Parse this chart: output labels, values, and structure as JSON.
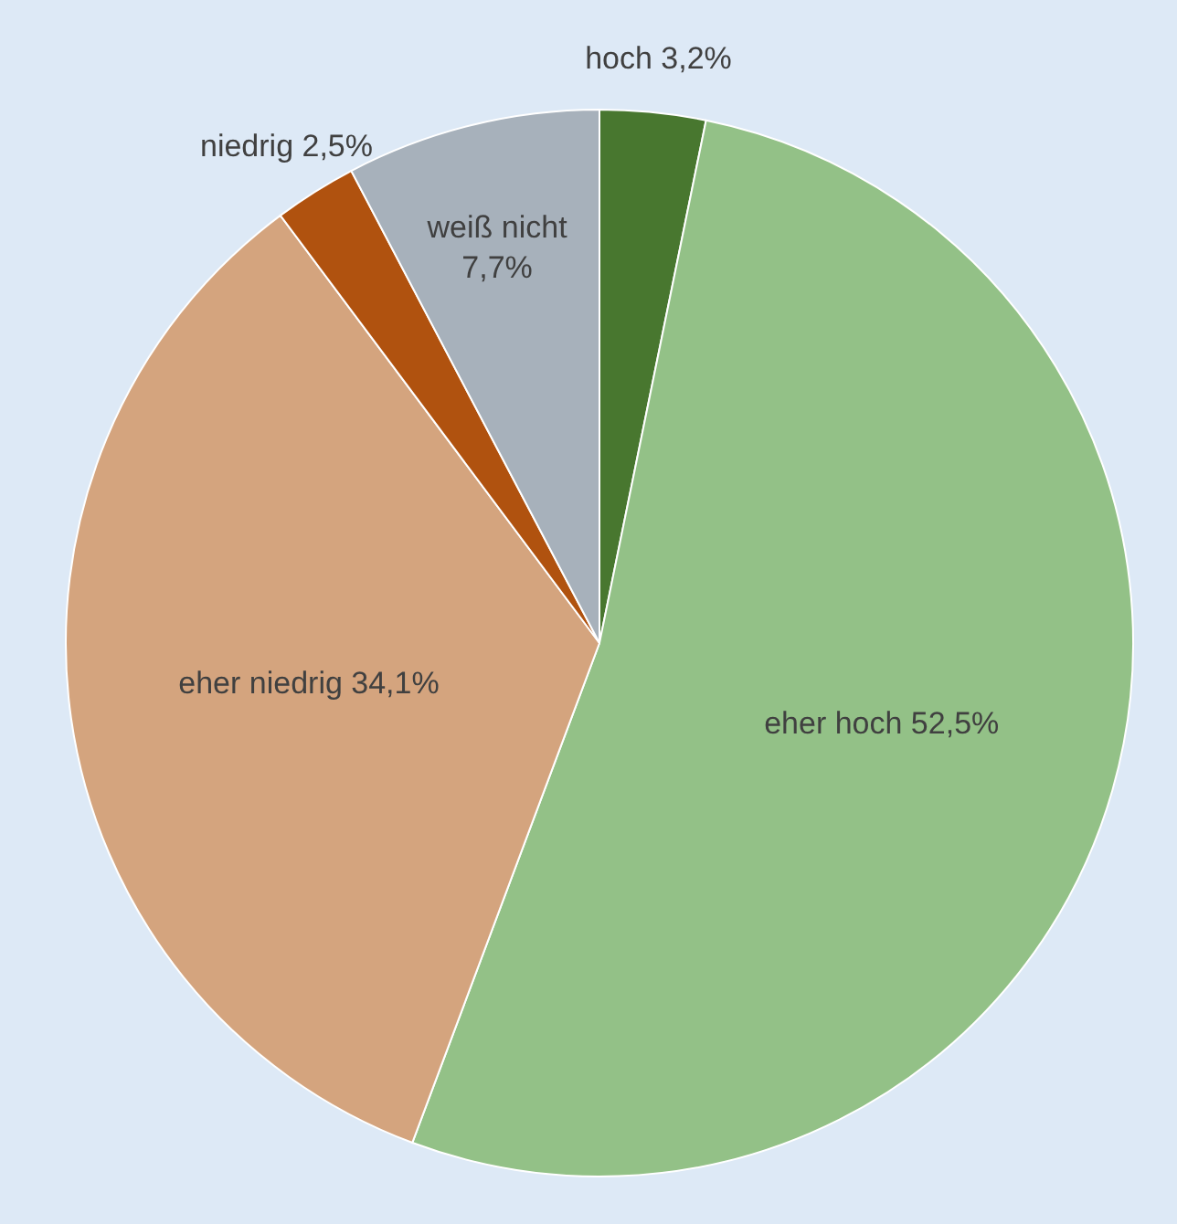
{
  "chart_data": {
    "type": "pie",
    "categories": [
      "hoch",
      "eher hoch",
      "eher niedrig",
      "niedrig",
      "weiß nicht"
    ],
    "values": [
      3.2,
      52.5,
      34.1,
      2.5,
      7.7
    ],
    "colors": [
      "#48772f",
      "#93c187",
      "#d4a47e",
      "#b0520f",
      "#a7b1bb"
    ],
    "value_labels": [
      "3,2%",
      "52,5%",
      "34,1%",
      "2,5%",
      "7,7%"
    ]
  }
}
